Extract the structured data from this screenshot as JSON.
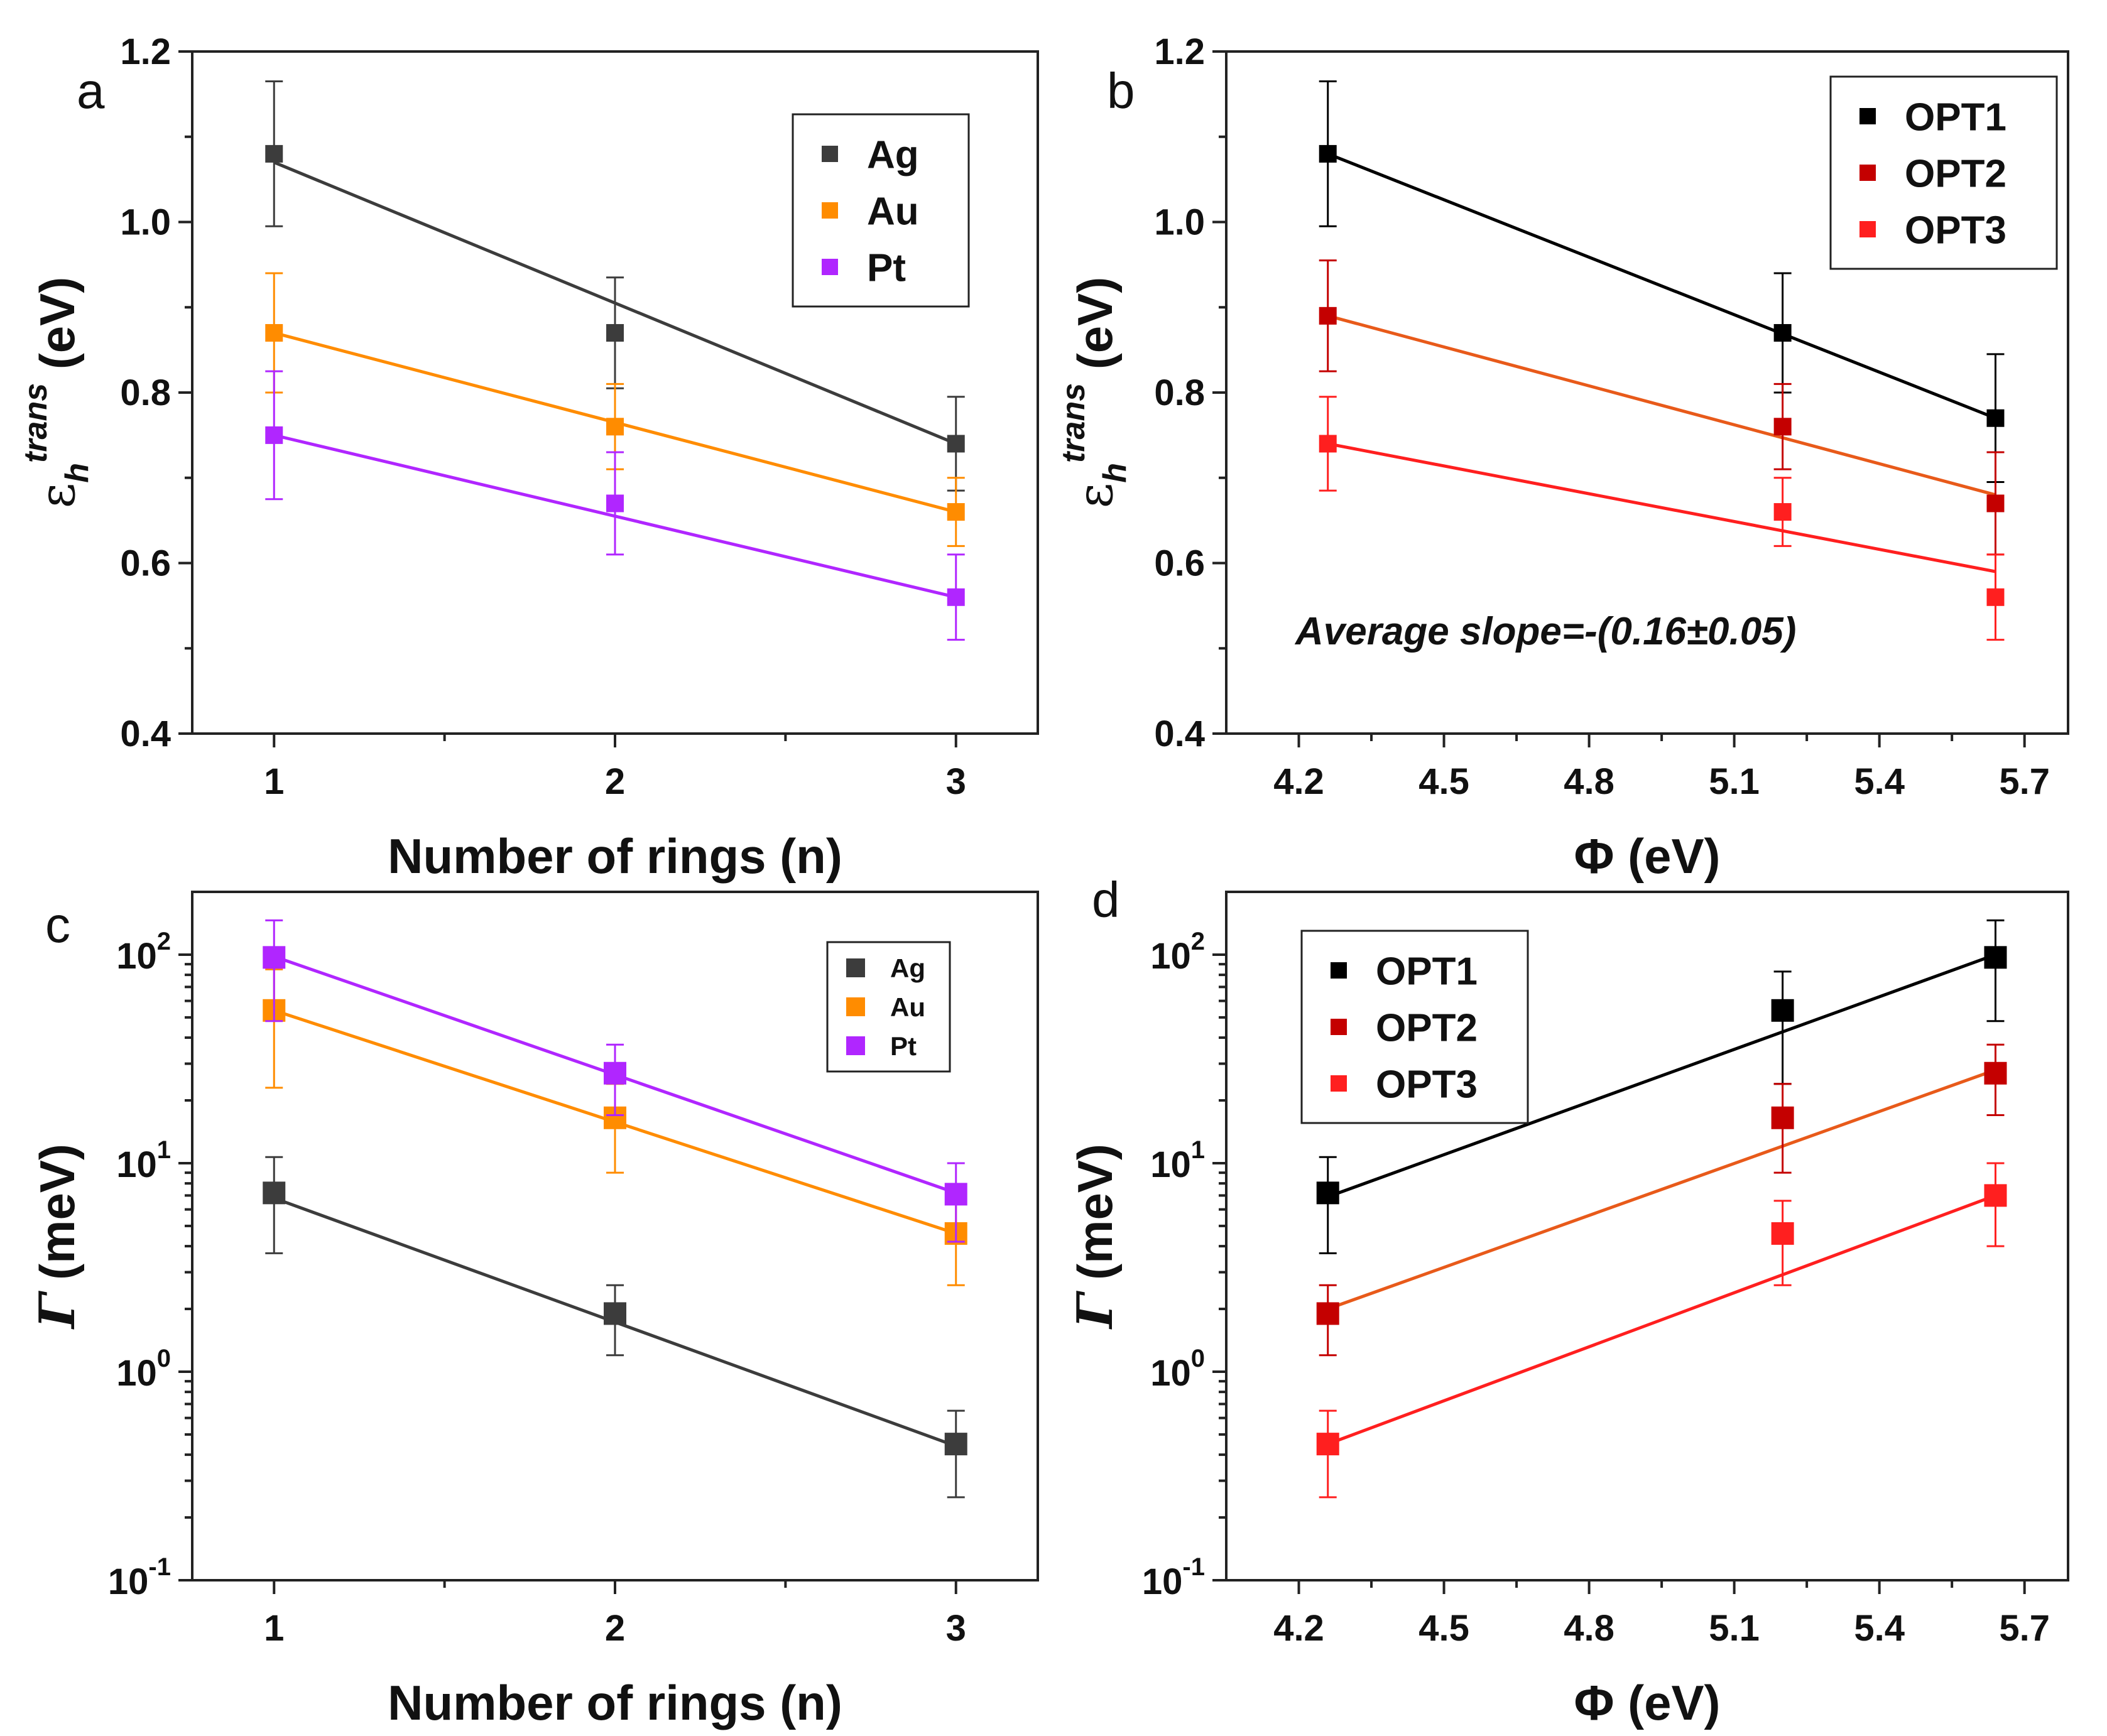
{
  "chart_data": [
    {
      "panel": "a",
      "type": "scatter",
      "xlabel": "Number of rings (n)",
      "ylabel": "εh trans (eV)",
      "ylabel_parts": {
        "symbol": "ε",
        "sub": "h",
        "sup": "trans",
        "unit": "(eV)"
      },
      "xlim": [
        0.76,
        3.24
      ],
      "ylim": [
        0.4,
        1.2
      ],
      "xticks": [
        1,
        2,
        3
      ],
      "xtick_labels": [
        "1",
        "2",
        "3"
      ],
      "yticks": [
        0.4,
        0.6,
        0.8,
        1.0,
        1.2
      ],
      "ytick_labels": [
        "0.4",
        "0.6",
        "0.8",
        "1.0",
        "1.2"
      ],
      "yscale": "linear",
      "legend": {
        "position": "top-right",
        "size": "large"
      },
      "series": [
        {
          "name": "Ag",
          "color": "#3c3c3c",
          "x": [
            1,
            2,
            3
          ],
          "y": [
            1.08,
            0.87,
            0.74
          ],
          "err": [
            0.085,
            0.065,
            0.055
          ],
          "fit": [
            1.07,
            0.74
          ]
        },
        {
          "name": "Au",
          "color": "#ff8c00",
          "x": [
            1,
            2,
            3
          ],
          "y": [
            0.87,
            0.76,
            0.66
          ],
          "err": [
            0.07,
            0.05,
            0.04
          ],
          "fit": [
            0.87,
            0.66
          ]
        },
        {
          "name": "Pt",
          "color": "#b026ff",
          "x": [
            1,
            2,
            3
          ],
          "y": [
            0.75,
            0.67,
            0.56
          ],
          "err": [
            0.075,
            0.06,
            0.05
          ],
          "fit": [
            0.75,
            0.56
          ]
        }
      ]
    },
    {
      "panel": "b",
      "type": "scatter",
      "xlabel": "Φ (eV)",
      "ylabel": "εh trans (eV)",
      "ylabel_parts": {
        "symbol": "ε",
        "sub": "h",
        "sup": "trans",
        "unit": "(eV)"
      },
      "xlim": [
        4.05,
        5.79
      ],
      "ylim": [
        0.4,
        1.2
      ],
      "xticks": [
        4.2,
        4.5,
        4.8,
        5.1,
        5.4,
        5.7
      ],
      "xtick_labels": [
        "4.2",
        "4.5",
        "4.8",
        "5.1",
        "5.4",
        "5.7"
      ],
      "yticks": [
        0.4,
        0.6,
        0.8,
        1.0,
        1.2
      ],
      "ytick_labels": [
        "0.4",
        "0.6",
        "0.8",
        "1.0",
        "1.2"
      ],
      "yscale": "linear",
      "legend": {
        "position": "top-right",
        "size": "large"
      },
      "annotation": "Average slope=-(0.16±0.05)",
      "series": [
        {
          "name": "OPT1",
          "color": "#000000",
          "line_color": "#000000",
          "x": [
            4.26,
            5.2,
            5.64
          ],
          "y": [
            1.08,
            0.87,
            0.77
          ],
          "err": [
            0.085,
            0.07,
            0.075
          ],
          "fit": [
            1.08,
            0.77
          ]
        },
        {
          "name": "OPT2",
          "color": "#c40000",
          "line_color": "#e85a1a",
          "x": [
            4.26,
            5.2,
            5.64
          ],
          "y": [
            0.89,
            0.76,
            0.67
          ],
          "err": [
            0.065,
            0.05,
            0.06
          ],
          "fit": [
            0.89,
            0.68
          ]
        },
        {
          "name": "OPT3",
          "color": "#ff1f1f",
          "line_color": "#ff1f1f",
          "x": [
            4.26,
            5.2,
            5.64
          ],
          "y": [
            0.74,
            0.66,
            0.56
          ],
          "err": [
            0.055,
            0.04,
            0.05
          ],
          "fit": [
            0.74,
            0.59
          ]
        }
      ]
    },
    {
      "panel": "c",
      "type": "scatter",
      "xlabel": "Number of rings (n)",
      "ylabel": "Γ (meV)",
      "ylabel_parts": {
        "symbol": "Γ",
        "unit": "(meV)"
      },
      "xlim": [
        0.76,
        3.24
      ],
      "ylim": [
        0.1,
        200
      ],
      "xticks": [
        1,
        2,
        3
      ],
      "xtick_labels": [
        "1",
        "2",
        "3"
      ],
      "yticks": [
        0.1,
        1,
        10,
        100
      ],
      "ytick_labels": [
        [
          "10",
          "-1"
        ],
        [
          "10",
          "0"
        ],
        [
          "10",
          "1"
        ],
        [
          "10",
          "2"
        ]
      ],
      "yscale": "log",
      "legend": {
        "position": "top-right",
        "size": "small"
      },
      "series": [
        {
          "name": "Ag",
          "color": "#3c3c3c",
          "x": [
            1,
            2,
            3
          ],
          "y": [
            7.2,
            1.9,
            0.45
          ],
          "ylo": [
            3.7,
            1.2,
            0.25
          ],
          "yhi": [
            10.7,
            2.6,
            0.65
          ],
          "fit": [
            6.8,
            0.44
          ]
        },
        {
          "name": "Au",
          "color": "#ff8c00",
          "x": [
            1,
            2,
            3
          ],
          "y": [
            54,
            16.5,
            4.6
          ],
          "ylo": [
            23,
            9,
            2.6
          ],
          "yhi": [
            85,
            24,
            6.6
          ],
          "fit": [
            54,
            4.6
          ]
        },
        {
          "name": "Pt",
          "color": "#b026ff",
          "x": [
            1,
            2,
            3
          ],
          "y": [
            97,
            27,
            7.1
          ],
          "ylo": [
            48,
            17,
            4.2
          ],
          "yhi": [
            146,
            37,
            10
          ],
          "fit": [
            98,
            7.2
          ]
        }
      ]
    },
    {
      "panel": "d",
      "type": "scatter",
      "xlabel": "Φ (eV)",
      "ylabel": "Γ (meV)",
      "ylabel_parts": {
        "symbol": "Γ",
        "unit": "(meV)"
      },
      "xlim": [
        4.05,
        5.79
      ],
      "ylim": [
        0.1,
        200
      ],
      "xticks": [
        4.2,
        4.5,
        4.8,
        5.1,
        5.4,
        5.7
      ],
      "xtick_labels": [
        "4.2",
        "4.5",
        "4.8",
        "5.1",
        "5.4",
        "5.7"
      ],
      "yticks": [
        0.1,
        1,
        10,
        100
      ],
      "ytick_labels": [
        [
          "10",
          "-1"
        ],
        [
          "10",
          "0"
        ],
        [
          "10",
          "1"
        ],
        [
          "10",
          "2"
        ]
      ],
      "yscale": "log",
      "legend": {
        "position": "top-left",
        "size": "large"
      },
      "series": [
        {
          "name": "OPT1",
          "color": "#000000",
          "line_color": "#000000",
          "x": [
            4.26,
            5.2,
            5.64
          ],
          "y": [
            7.2,
            54,
            97
          ],
          "ylo": [
            3.7,
            24,
            48
          ],
          "yhi": [
            10.7,
            83,
            146
          ],
          "fit": [
            6.9,
            100
          ]
        },
        {
          "name": "OPT2",
          "color": "#c40000",
          "line_color": "#e85a1a",
          "x": [
            4.26,
            5.2,
            5.64
          ],
          "y": [
            1.9,
            16.5,
            27
          ],
          "ylo": [
            1.2,
            9,
            17
          ],
          "yhi": [
            2.6,
            24,
            37
          ],
          "fit": [
            2.0,
            28
          ]
        },
        {
          "name": "OPT3",
          "color": "#ff1f1f",
          "line_color": "#ff1f1f",
          "x": [
            4.26,
            5.2,
            5.64
          ],
          "y": [
            0.45,
            4.6,
            7.0
          ],
          "ylo": [
            0.25,
            2.6,
            4.0
          ],
          "yhi": [
            0.65,
            6.6,
            10
          ],
          "fit": [
            0.45,
            7.0
          ]
        }
      ]
    }
  ]
}
